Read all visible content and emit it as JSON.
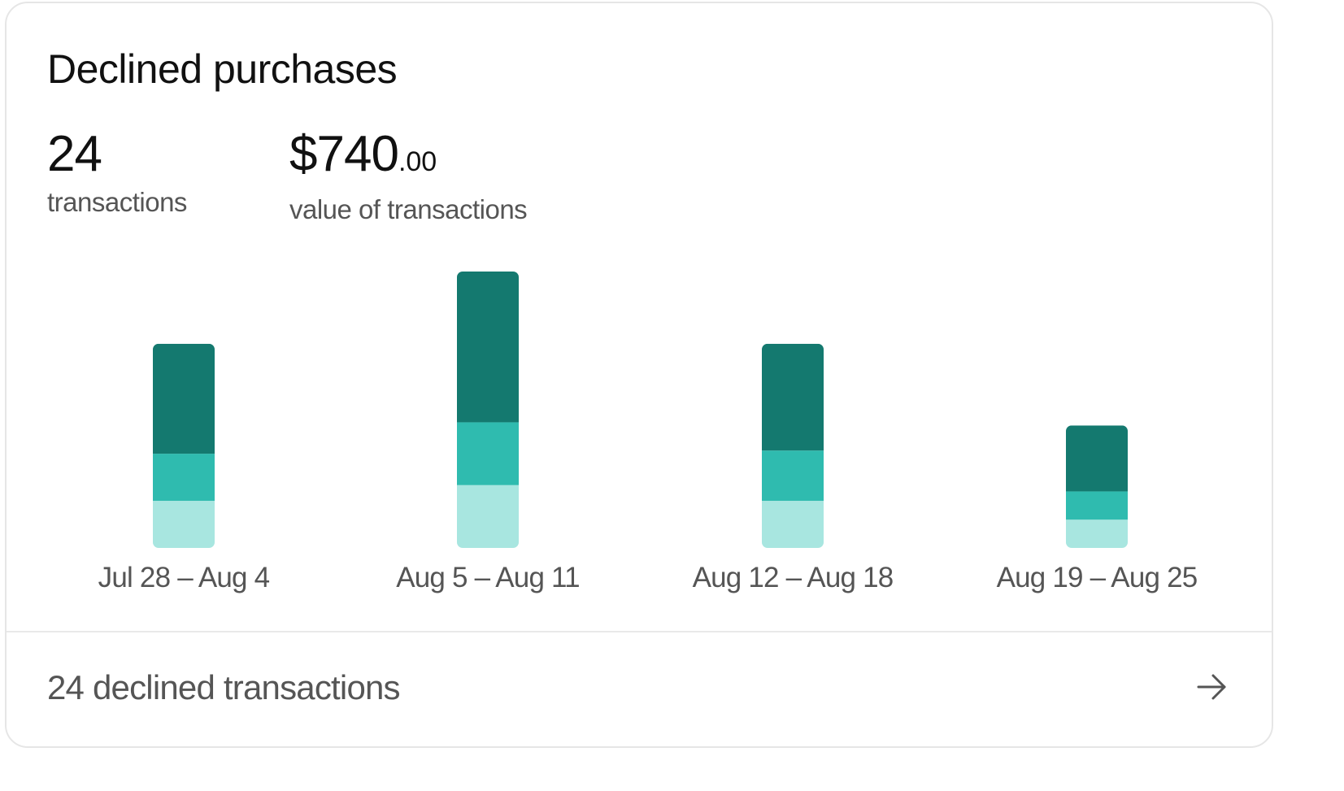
{
  "card": {
    "title": "Declined purchases",
    "count": {
      "value": "24",
      "label": "transactions"
    },
    "total": {
      "dollars": "$740",
      "cents": ".00",
      "label": "value of transactions"
    }
  },
  "chart_data": {
    "type": "bar",
    "stacked": true,
    "categories": [
      "Jul 28 – Aug 4",
      "Aug 5 – Aug 11",
      "Aug 12 – Aug 18",
      "Aug 19 – Aug 25"
    ],
    "series": [
      {
        "color": "#a8e6e0",
        "values": [
          1.5,
          2.0,
          1.5,
          0.9
        ]
      },
      {
        "color": "#2fbbaf",
        "values": [
          1.5,
          2.0,
          1.6,
          0.9
        ]
      },
      {
        "color": "#14796f",
        "values": [
          3.5,
          4.8,
          3.4,
          2.1
        ]
      }
    ],
    "ylim": [
      0,
      8.8
    ],
    "grid": false
  },
  "footer": {
    "label": "24 declined transactions",
    "icon": "arrow-right-icon"
  }
}
